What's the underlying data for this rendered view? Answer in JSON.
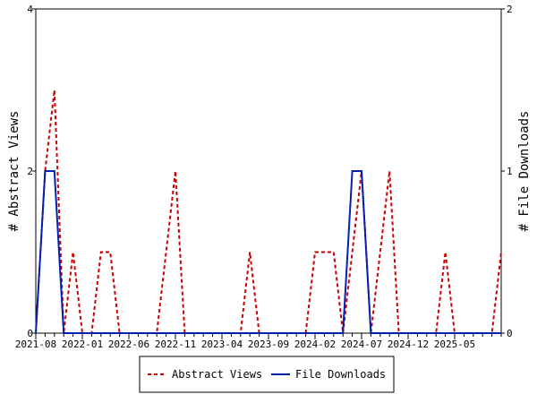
{
  "chart_data": {
    "type": "line",
    "title": "",
    "xlabel": "",
    "ylabel_left": "# Abstract Views",
    "ylabel_right": "# File Downloads",
    "ylim_left": [
      0,
      4
    ],
    "ylim_right": [
      0,
      2
    ],
    "left_ticks": [
      "0",
      "2",
      "4"
    ],
    "right_ticks": [
      "0",
      "1",
      "2"
    ],
    "x_tick_labels": [
      "2021-08",
      "2022-01",
      "2022-06",
      "2022-11",
      "2023-04",
      "2023-09",
      "2024-02",
      "2024-07",
      "2024-12",
      "2025-05"
    ],
    "x_range": [
      "2021-08",
      "2025-10"
    ],
    "grid": false,
    "legend_position": "bottom",
    "x_months": [
      "2021-08",
      "2021-09",
      "2021-10",
      "2021-11",
      "2021-12",
      "2022-01",
      "2022-02",
      "2022-03",
      "2022-04",
      "2022-05",
      "2022-06",
      "2022-07",
      "2022-08",
      "2022-09",
      "2022-10",
      "2022-11",
      "2022-12",
      "2023-01",
      "2023-02",
      "2023-03",
      "2023-04",
      "2023-05",
      "2023-06",
      "2023-07",
      "2023-08",
      "2023-09",
      "2023-10",
      "2023-11",
      "2023-12",
      "2024-01",
      "2024-02",
      "2024-03",
      "2024-04",
      "2024-05",
      "2024-06",
      "2024-07",
      "2024-08",
      "2024-09",
      "2024-10",
      "2024-11",
      "2024-12",
      "2025-01",
      "2025-02",
      "2025-03",
      "2025-04",
      "2025-05",
      "2025-06",
      "2025-07",
      "2025-08",
      "2025-09",
      "2025-10"
    ],
    "series": [
      {
        "name": "Abstract Views",
        "axis": "left",
        "color": "#cc0000",
        "dash": "dashed",
        "values": [
          0,
          2,
          3,
          0,
          1,
          0,
          0,
          1,
          1,
          0,
          0,
          0,
          0,
          0,
          1,
          2,
          0,
          0,
          0,
          0,
          0,
          0,
          0,
          1,
          0,
          0,
          0,
          0,
          0,
          0,
          1,
          1,
          1,
          0,
          1,
          2,
          0,
          1,
          2,
          0,
          0,
          0,
          0,
          0,
          1,
          0,
          0,
          0,
          0,
          0,
          1
        ]
      },
      {
        "name": "File Downloads",
        "axis": "right",
        "color": "#0022aa",
        "dash": "solid",
        "values": [
          0,
          1,
          1,
          0,
          0,
          0,
          0,
          0,
          0,
          0,
          0,
          0,
          0,
          0,
          0,
          0,
          0,
          0,
          0,
          0,
          0,
          0,
          0,
          0,
          0,
          0,
          0,
          0,
          0,
          0,
          0,
          0,
          0,
          0,
          1,
          1,
          0,
          0,
          0,
          0,
          0,
          0,
          0,
          0,
          0,
          0,
          0,
          0,
          0,
          0,
          0
        ]
      }
    ]
  }
}
